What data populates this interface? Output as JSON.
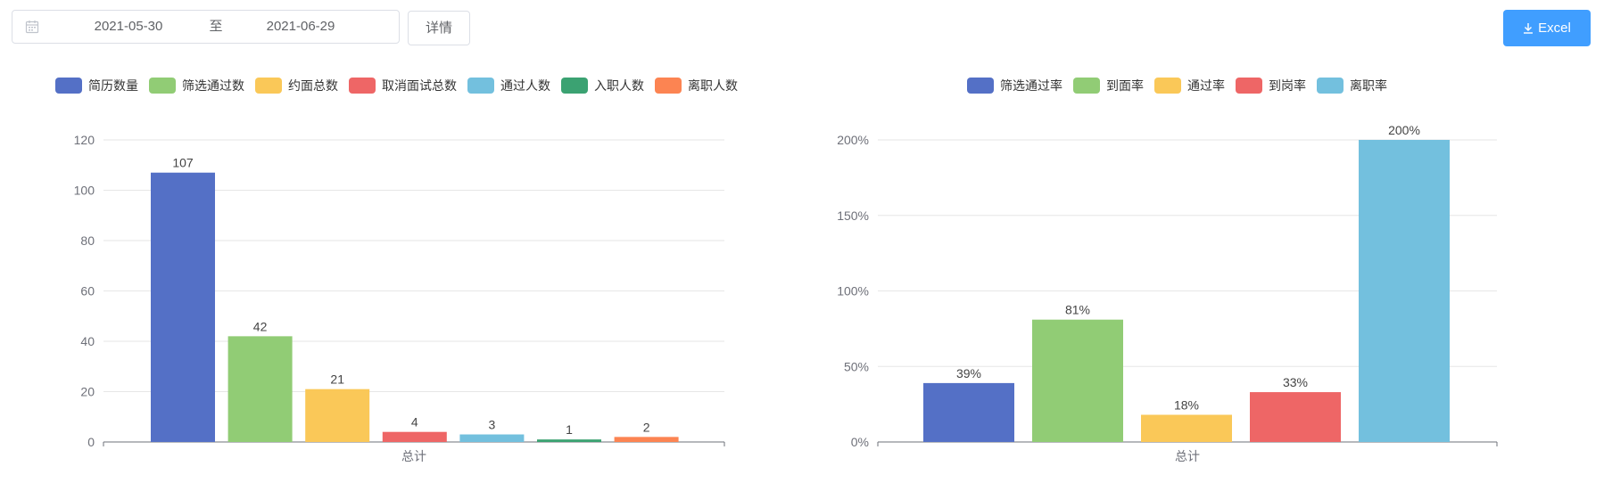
{
  "toolbar": {
    "date_start": "2021-05-30",
    "date_separator": "至",
    "date_end": "2021-06-29",
    "detail_label": "详情",
    "excel_label": "Excel",
    "calendar_icon": "calendar-icon",
    "download_icon": "download-icon"
  },
  "chart_data": [
    {
      "type": "bar",
      "categories": [
        "总计"
      ],
      "series": [
        {
          "name": "简历数量",
          "values": [
            107
          ],
          "labels": [
            "107"
          ],
          "color": "#5470c6"
        },
        {
          "name": "筛选通过数",
          "values": [
            42
          ],
          "labels": [
            "42"
          ],
          "color": "#91cc75"
        },
        {
          "name": "约面总数",
          "values": [
            21
          ],
          "labels": [
            "21"
          ],
          "color": "#fac858"
        },
        {
          "name": "取消面试总数",
          "values": [
            4
          ],
          "labels": [
            "4"
          ],
          "color": "#ee6666"
        },
        {
          "name": "通过人数",
          "values": [
            3
          ],
          "labels": [
            "3"
          ],
          "color": "#73c0de"
        },
        {
          "name": "入职人数",
          "values": [
            1
          ],
          "labels": [
            "1"
          ],
          "color": "#3ba272"
        },
        {
          "name": "离职人数",
          "values": [
            2
          ],
          "labels": [
            "2"
          ],
          "color": "#fc8452"
        }
      ],
      "ylim": [
        0,
        120
      ],
      "yticks": [
        "0",
        "20",
        "40",
        "60",
        "80",
        "100",
        "120"
      ],
      "grid": true,
      "legend": "top-center"
    },
    {
      "type": "bar",
      "categories": [
        "总计"
      ],
      "series": [
        {
          "name": "筛选通过率",
          "values": [
            39
          ],
          "labels": [
            "39%"
          ],
          "color": "#5470c6"
        },
        {
          "name": "到面率",
          "values": [
            81
          ],
          "labels": [
            "81%"
          ],
          "color": "#91cc75"
        },
        {
          "name": "通过率",
          "values": [
            18
          ],
          "labels": [
            "18%"
          ],
          "color": "#fac858"
        },
        {
          "name": "到岗率",
          "values": [
            33
          ],
          "labels": [
            "33%"
          ],
          "color": "#ee6666"
        },
        {
          "name": "离职率",
          "values": [
            200
          ],
          "labels": [
            "200%"
          ],
          "color": "#73c0de"
        }
      ],
      "ylim": [
        0,
        200
      ],
      "yticks": [
        "0%",
        "50%",
        "100%",
        "150%",
        "200%"
      ],
      "grid": true,
      "legend": "top-center"
    }
  ]
}
